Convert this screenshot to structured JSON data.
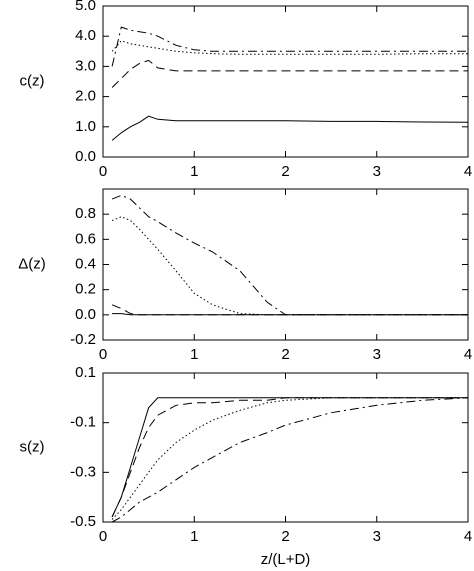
{
  "chart_data": [
    {
      "type": "line",
      "ylabel": "c(z)",
      "x": [
        0.1,
        0.2,
        0.3,
        0.4,
        0.5,
        0.6,
        0.8,
        1,
        1.2,
        1.5,
        1.8,
        2,
        2.5,
        3,
        3.5,
        4
      ],
      "xlim": [
        0,
        4
      ],
      "xticks": [
        0,
        1,
        2,
        3,
        4
      ],
      "ylim": [
        0,
        5
      ],
      "yticks": [
        {
          "value": 0,
          "label": "0.0"
        },
        {
          "value": 1,
          "label": "1.0"
        },
        {
          "value": 2,
          "label": "2.0"
        },
        {
          "value": 3,
          "label": "3.0"
        },
        {
          "value": 4,
          "label": "4.0"
        },
        {
          "value": 5,
          "label": "5.0"
        }
      ],
      "series": [
        {
          "color": "#000000",
          "dash": "solid",
          "values": [
            0.55,
            0.8,
            1.0,
            1.15,
            1.35,
            1.25,
            1.2,
            1.2,
            1.2,
            1.2,
            1.2,
            1.2,
            1.18,
            1.18,
            1.16,
            1.15
          ]
        },
        {
          "color": "#000000",
          "dash": "dashed",
          "values": [
            2.3,
            2.6,
            2.9,
            3.1,
            3.2,
            2.95,
            2.85,
            2.85,
            2.85,
            2.85,
            2.85,
            2.85,
            2.85,
            2.85,
            2.85,
            2.85
          ]
        },
        {
          "color": "#000000",
          "dash": "dotted",
          "values": [
            3.5,
            3.85,
            3.75,
            3.7,
            3.65,
            3.6,
            3.5,
            3.45,
            3.42,
            3.4,
            3.4,
            3.4,
            3.4,
            3.4,
            3.42,
            3.42
          ]
        },
        {
          "color": "#000000",
          "dash": "dashdot",
          "values": [
            3.0,
            4.3,
            4.2,
            4.15,
            4.1,
            4.0,
            3.7,
            3.55,
            3.5,
            3.5,
            3.5,
            3.5,
            3.5,
            3.5,
            3.5,
            3.5
          ]
        }
      ]
    },
    {
      "type": "line",
      "ylabel": "Δ(z)",
      "x": [
        0.1,
        0.2,
        0.3,
        0.4,
        0.5,
        0.6,
        0.8,
        1,
        1.2,
        1.5,
        1.8,
        2,
        2.5,
        3,
        3.5,
        4
      ],
      "xlim": [
        0,
        4
      ],
      "xticks": [
        0,
        1,
        2,
        3,
        4
      ],
      "ylim": [
        -0.2,
        1.0
      ],
      "yticks": [
        -0.2,
        {
          "value": 0,
          "label": "0.0"
        },
        0.2,
        0.4,
        0.6,
        0.8
      ],
      "series": [
        {
          "color": "#000000",
          "dash": "solid",
          "values": [
            0.01,
            0.01,
            0,
            0,
            0,
            0,
            0,
            0,
            0,
            0,
            0,
            0,
            0,
            0,
            0,
            0
          ]
        },
        {
          "color": "#000000",
          "dash": "dashed",
          "values": [
            0.08,
            0.05,
            0.01,
            0,
            0,
            0,
            0,
            0,
            0,
            0,
            0,
            0,
            0,
            0,
            0,
            0
          ]
        },
        {
          "color": "#000000",
          "dash": "dotted",
          "values": [
            0.75,
            0.78,
            0.75,
            0.68,
            0.6,
            0.52,
            0.35,
            0.17,
            0.08,
            0.01,
            0,
            0,
            0,
            0,
            0,
            0
          ]
        },
        {
          "color": "#000000",
          "dash": "dashdot",
          "values": [
            0.92,
            0.95,
            0.92,
            0.85,
            0.78,
            0.74,
            0.65,
            0.57,
            0.5,
            0.35,
            0.1,
            0,
            0,
            0,
            0,
            0
          ]
        }
      ]
    },
    {
      "type": "line",
      "ylabel": "s(z)",
      "xlabel": "z/(L+D)",
      "x": [
        0.1,
        0.2,
        0.3,
        0.4,
        0.5,
        0.6,
        0.8,
        1,
        1.2,
        1.5,
        1.8,
        2,
        2.5,
        3,
        3.5,
        4
      ],
      "xlim": [
        0,
        4
      ],
      "xticks": [
        0,
        1,
        2,
        3,
        4
      ],
      "ylim": [
        -0.5,
        0.1
      ],
      "yticks": [
        -0.5,
        -0.3,
        -0.1,
        0.1
      ],
      "series": [
        {
          "color": "#000000",
          "dash": "solid",
          "values": [
            -0.48,
            -0.4,
            -0.28,
            -0.16,
            -0.04,
            0,
            0,
            0,
            0,
            0,
            0,
            0,
            0,
            0,
            0,
            0
          ]
        },
        {
          "color": "#000000",
          "dash": "dashed",
          "values": [
            -0.48,
            -0.4,
            -0.3,
            -0.2,
            -0.12,
            -0.07,
            -0.03,
            -0.02,
            -0.02,
            -0.01,
            -0.01,
            0,
            0,
            0,
            0,
            0
          ]
        },
        {
          "color": "#000000",
          "dash": "dotted",
          "values": [
            -0.49,
            -0.45,
            -0.4,
            -0.35,
            -0.3,
            -0.25,
            -0.18,
            -0.13,
            -0.09,
            -0.05,
            -0.02,
            -0.01,
            0,
            0,
            0,
            0
          ]
        },
        {
          "color": "#000000",
          "dash": "dashdot",
          "values": [
            -0.5,
            -0.48,
            -0.45,
            -0.42,
            -0.4,
            -0.38,
            -0.33,
            -0.28,
            -0.24,
            -0.18,
            -0.14,
            -0.11,
            -0.06,
            -0.03,
            -0.01,
            0
          ]
        }
      ]
    }
  ]
}
